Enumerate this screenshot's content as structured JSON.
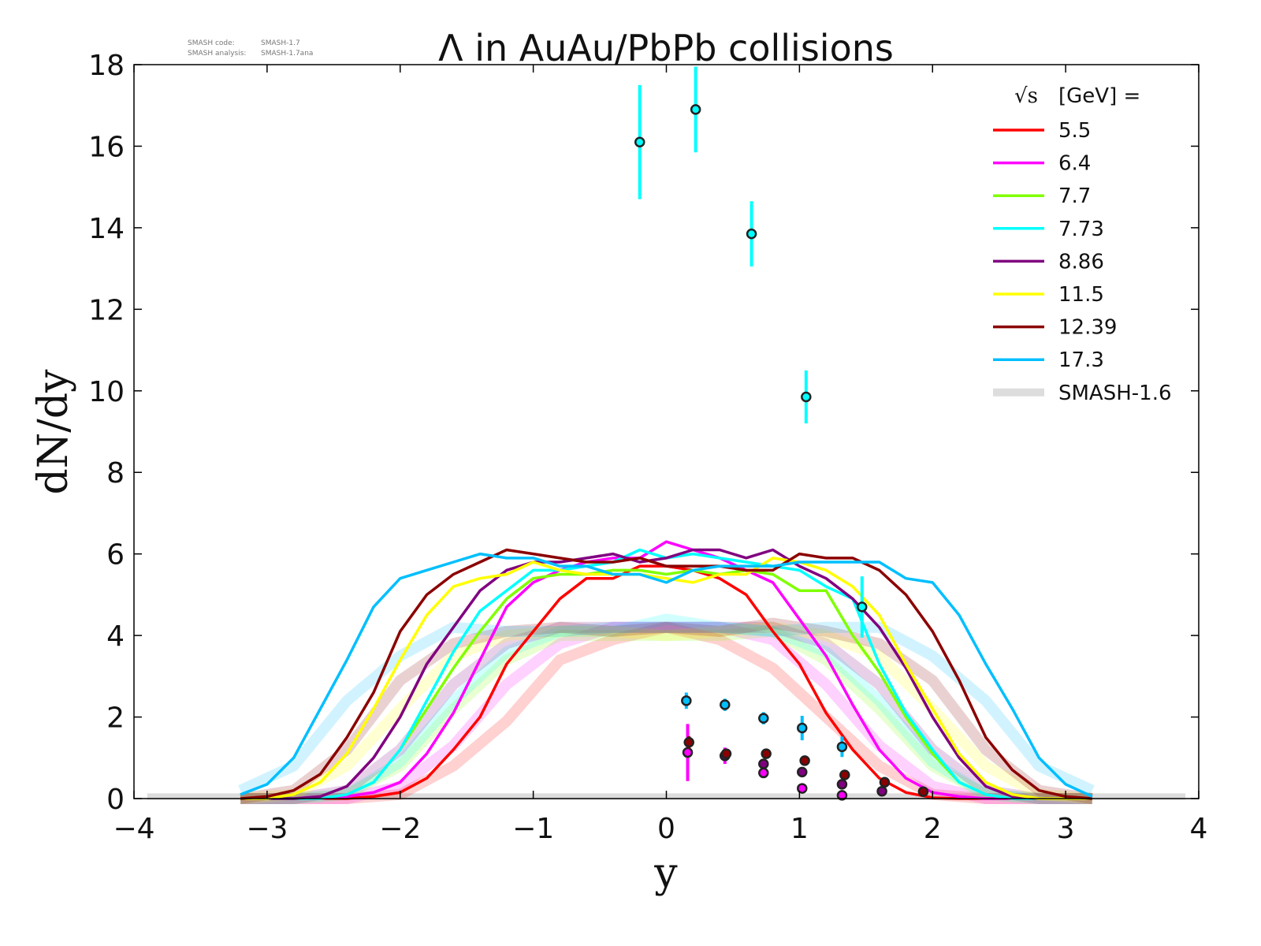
{
  "chart_data": {
    "type": "line",
    "title": "Λ in AuAu/PbPb collisions",
    "xlabel": "y",
    "ylabel": "dN/dy",
    "xlim": [
      -4,
      4
    ],
    "ylim": [
      0,
      18
    ],
    "xticks": [
      "−4",
      "−3",
      "−2",
      "−1",
      "0",
      "1",
      "2",
      "3",
      "4"
    ],
    "yticks": [
      "0",
      "2",
      "4",
      "6",
      "8",
      "10",
      "12",
      "14",
      "16",
      "18"
    ],
    "meta": {
      "code_label": "SMASH code:",
      "code_value": "SMASH-1.7",
      "analysis_label": "SMASH analysis:",
      "analysis_value": "SMASH-1.7ana"
    },
    "legend": {
      "title_sqrt": "√s",
      "title_rest": "[GeV] =",
      "placement": "top-right",
      "ref_label": "SMASH-1.6",
      "ref_color": "#dddddd"
    },
    "x": [
      -3.2,
      -3.0,
      -2.8,
      -2.6,
      -2.4,
      -2.2,
      -2.0,
      -1.8,
      -1.6,
      -1.4,
      -1.2,
      -1.0,
      -0.8,
      -0.6,
      -0.4,
      -0.2,
      0,
      0.2,
      0.4,
      0.6,
      0.8,
      1.0,
      1.2,
      1.4,
      1.6,
      1.8,
      2.0,
      2.2,
      2.4,
      2.6,
      2.8,
      3.0,
      3.2
    ],
    "x_ref": [
      -3.2,
      -2.8,
      -2.4,
      -2.0,
      -1.6,
      -1.2,
      -0.8,
      -0.4,
      0,
      0.4,
      0.8,
      1.2,
      1.6,
      2.0,
      2.4,
      2.8,
      3.2
    ],
    "series": [
      {
        "name": "5.5",
        "color": "#ff0000",
        "values": [
          0,
          0,
          0,
          0,
          0,
          0.05,
          0.15,
          0.5,
          1.2,
          2.0,
          3.3,
          4.1,
          4.9,
          5.4,
          5.4,
          5.7,
          5.7,
          5.6,
          5.4,
          5.0,
          4.1,
          3.3,
          2.1,
          1.2,
          0.5,
          0.15,
          0.02,
          0,
          0,
          0,
          0,
          0,
          0
        ],
        "ref": [
          0,
          0,
          0,
          0.1,
          0.8,
          1.9,
          3.4,
          3.9,
          4.2,
          3.9,
          3.2,
          2.0,
          0.8,
          0.1,
          0,
          0,
          0
        ],
        "points": []
      },
      {
        "name": "6.4",
        "color": "#ff00ff",
        "values": [
          0,
          0,
          0,
          0,
          0.05,
          0.15,
          0.4,
          1.1,
          2.1,
          3.4,
          4.7,
          5.3,
          5.6,
          5.8,
          5.9,
          5.9,
          6.3,
          6.1,
          5.9,
          5.6,
          5.3,
          4.4,
          3.5,
          2.3,
          1.2,
          0.5,
          0.15,
          0.05,
          0,
          0,
          0,
          0,
          0
        ],
        "ref": [
          0,
          0,
          0,
          0.3,
          1.3,
          2.8,
          3.8,
          4.2,
          4.2,
          4.2,
          3.9,
          2.8,
          1.3,
          0.3,
          0,
          0,
          0
        ],
        "points": [
          [
            0.16,
            1.13,
            0.7
          ],
          [
            0.44,
            1.05,
            0.2
          ],
          [
            0.73,
            0.63,
            0.05
          ],
          [
            1.02,
            0.25,
            0.05
          ],
          [
            1.32,
            0.08,
            0.03
          ]
        ]
      },
      {
        "name": "7.7",
        "color": "#80ff00",
        "values": [
          0,
          0,
          0,
          0,
          0.1,
          0.4,
          1.2,
          2.2,
          3.2,
          4.1,
          4.9,
          5.4,
          5.5,
          5.5,
          5.6,
          5.6,
          5.5,
          5.6,
          5.5,
          5.6,
          5.5,
          5.1,
          5.1,
          4.0,
          3.1,
          2.0,
          1.1,
          0.4,
          0.1,
          0,
          0,
          0,
          0
        ],
        "ref": [
          0,
          0,
          0.1,
          0.8,
          2.2,
          3.4,
          4.0,
          4.0,
          4.0,
          4.0,
          4.1,
          3.4,
          2.2,
          0.8,
          0.1,
          0,
          0
        ],
        "points": []
      },
      {
        "name": "7.73",
        "color": "#00ffff",
        "values": [
          0,
          0,
          0,
          0,
          0.1,
          0.4,
          1.2,
          2.4,
          3.6,
          4.6,
          5.1,
          5.6,
          5.6,
          5.7,
          5.8,
          6.1,
          5.9,
          6.0,
          5.9,
          5.8,
          5.7,
          5.6,
          5.2,
          4.9,
          3.3,
          2.1,
          1.2,
          0.4,
          0.1,
          0,
          0,
          0,
          0
        ],
        "ref": [
          0,
          0,
          0.1,
          0.9,
          2.4,
          3.6,
          4.1,
          4.1,
          4.4,
          4.2,
          4.1,
          3.6,
          2.4,
          0.9,
          0.1,
          0,
          0
        ],
        "points": [
          [
            -0.2,
            16.1,
            1.4
          ],
          [
            0.22,
            16.9,
            1.05
          ],
          [
            0.64,
            13.85,
            0.8
          ],
          [
            1.05,
            9.85,
            0.65
          ],
          [
            1.47,
            4.7,
            0.75
          ]
        ]
      },
      {
        "name": "8.86",
        "color": "#800080",
        "values": [
          0,
          0,
          0,
          0.05,
          0.3,
          1.0,
          2.0,
          3.3,
          4.2,
          5.1,
          5.6,
          5.8,
          5.8,
          5.9,
          6.0,
          5.8,
          5.9,
          6.1,
          6.1,
          5.9,
          6.1,
          5.7,
          5.4,
          4.9,
          4.2,
          3.2,
          2.0,
          1.0,
          0.3,
          0.05,
          0,
          0,
          0
        ],
        "ref": [
          0,
          0,
          0.2,
          1.2,
          2.8,
          3.8,
          4.2,
          4.2,
          4.2,
          4.2,
          4.2,
          3.8,
          2.8,
          1.2,
          0.2,
          0,
          0
        ],
        "points": [
          [
            0.44,
            1.05,
            0
          ],
          [
            0.73,
            0.85,
            0
          ],
          [
            1.02,
            0.65,
            0
          ],
          [
            1.32,
            0.35,
            0
          ],
          [
            1.62,
            0.18,
            0
          ]
        ]
      },
      {
        "name": "11.5",
        "color": "#ffff00",
        "values": [
          0,
          0,
          0.1,
          0.4,
          1.1,
          2.2,
          3.4,
          4.5,
          5.2,
          5.4,
          5.5,
          5.8,
          5.6,
          5.5,
          5.5,
          5.5,
          5.4,
          5.3,
          5.5,
          5.5,
          5.9,
          5.8,
          5.6,
          5.2,
          4.5,
          3.3,
          2.2,
          1.1,
          0.4,
          0.1,
          0,
          0,
          0
        ],
        "ref": [
          0,
          0.1,
          0.8,
          2.2,
          3.5,
          4.0,
          4.1,
          4.1,
          4.0,
          4.1,
          4.2,
          4.0,
          3.5,
          2.2,
          0.8,
          0.1,
          0
        ],
        "points": []
      },
      {
        "name": "12.39",
        "color": "#8b0000",
        "values": [
          0,
          0.05,
          0.2,
          0.6,
          1.5,
          2.6,
          4.1,
          5.0,
          5.5,
          5.8,
          6.1,
          6.0,
          5.9,
          5.8,
          5.8,
          5.9,
          5.7,
          5.7,
          5.7,
          5.6,
          5.6,
          6.0,
          5.9,
          5.9,
          5.6,
          5.0,
          4.1,
          2.9,
          1.5,
          0.7,
          0.2,
          0.05,
          0
        ],
        "ref": [
          0,
          0.2,
          1.2,
          2.9,
          3.8,
          4.1,
          4.2,
          4.1,
          4.2,
          4.1,
          4.3,
          4.1,
          3.8,
          2.9,
          1.2,
          0.2,
          0
        ],
        "points": [
          [
            0.17,
            1.38,
            0.15
          ],
          [
            0.45,
            1.1,
            0.05
          ],
          [
            0.75,
            1.1,
            0
          ],
          [
            1.04,
            0.93,
            0
          ],
          [
            1.34,
            0.58,
            0
          ],
          [
            1.64,
            0.4,
            0
          ],
          [
            1.93,
            0.17,
            0
          ]
        ]
      },
      {
        "name": "17.3",
        "color": "#00bfff",
        "values": [
          0.1,
          0.35,
          1.0,
          2.2,
          3.4,
          4.7,
          5.4,
          5.6,
          5.8,
          6.0,
          5.9,
          5.9,
          5.7,
          5.7,
          5.5,
          5.5,
          5.3,
          5.6,
          5.7,
          5.7,
          5.7,
          5.8,
          5.8,
          5.8,
          5.8,
          5.4,
          5.3,
          4.5,
          3.3,
          2.2,
          1.0,
          0.35,
          0.05
        ],
        "ref": [
          0.2,
          0.8,
          2.4,
          3.5,
          4.2,
          4.1,
          4.1,
          4.2,
          4.2,
          4.2,
          4.1,
          4.2,
          4.2,
          3.5,
          2.4,
          0.8,
          0.2
        ],
        "points": [
          [
            0.15,
            2.4,
            0.2
          ],
          [
            0.44,
            2.3,
            0.15
          ],
          [
            0.73,
            1.97,
            0.15
          ],
          [
            1.02,
            1.73,
            0.3
          ],
          [
            1.32,
            1.27,
            0.25
          ]
        ]
      }
    ]
  }
}
